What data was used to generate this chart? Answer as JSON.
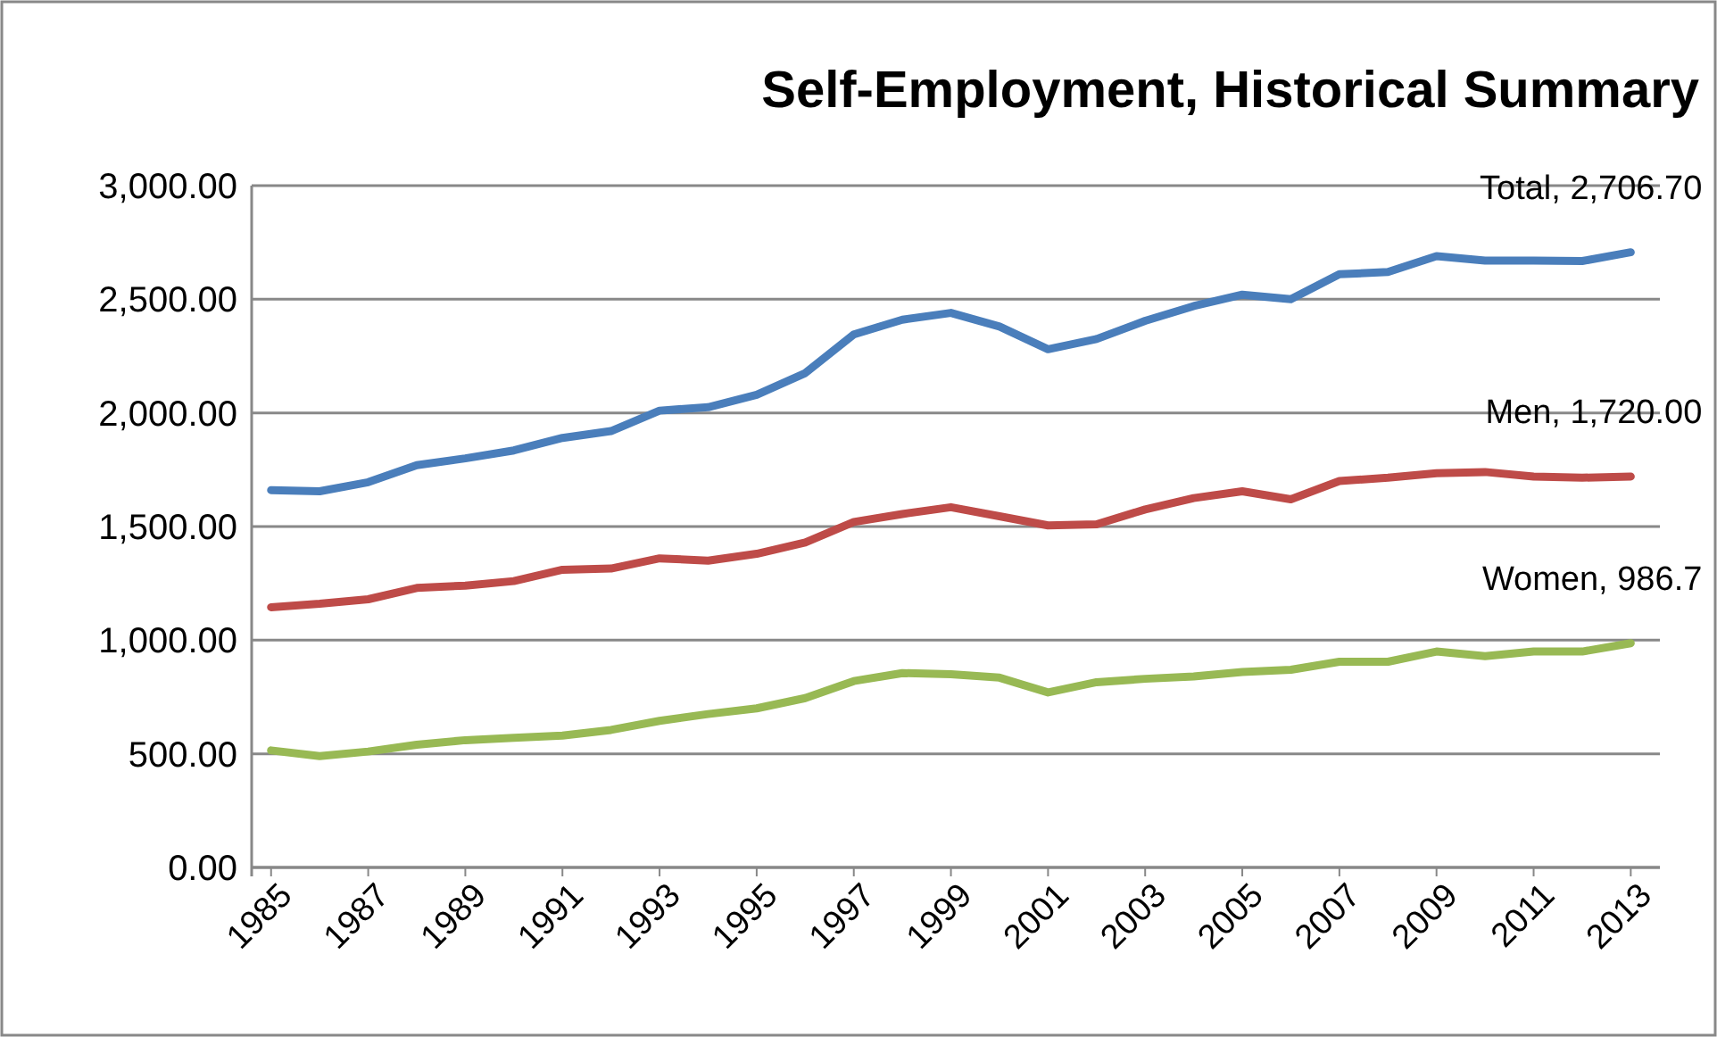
{
  "chart_data": {
    "type": "line",
    "title": "Self-Employment, Historical Summary",
    "x": [
      1985,
      1986,
      1987,
      1988,
      1989,
      1990,
      1991,
      1992,
      1993,
      1994,
      1995,
      1996,
      1997,
      1998,
      1999,
      2000,
      2001,
      2002,
      2003,
      2004,
      2005,
      2006,
      2007,
      2008,
      2009,
      2010,
      2011,
      2012,
      2013
    ],
    "series": [
      {
        "name": "Total,",
        "color": "#4a7ebb",
        "values": [
          1660,
          1655,
          1695,
          1770,
          1800,
          1835,
          1890,
          1920,
          2010,
          2025,
          2080,
          2175,
          2345,
          2410,
          2440,
          2380,
          2280,
          2325,
          2405,
          2470,
          2520,
          2500,
          2610,
          2620,
          2690,
          2670,
          2670,
          2668,
          2706.7
        ],
        "value_labels": [
          null,
          null,
          null,
          null,
          null,
          null,
          null,
          null,
          null,
          null,
          null,
          null,
          null,
          null,
          null,
          null,
          null,
          null,
          null,
          null,
          null,
          null,
          null,
          null,
          null,
          null,
          null,
          null,
          "2,706.70"
        ]
      },
      {
        "name": "Men,",
        "color": "#be4b48",
        "values": [
          1145,
          1160,
          1180,
          1230,
          1240,
          1260,
          1310,
          1315,
          1360,
          1350,
          1380,
          1430,
          1520,
          1555,
          1585,
          1545,
          1505,
          1510,
          1575,
          1625,
          1655,
          1620,
          1700,
          1715,
          1735,
          1740,
          1720,
          1715,
          1720
        ],
        "value_labels": [
          null,
          null,
          null,
          null,
          null,
          null,
          null,
          null,
          null,
          null,
          null,
          null,
          null,
          null,
          null,
          null,
          null,
          null,
          null,
          null,
          null,
          null,
          null,
          null,
          null,
          null,
          null,
          null,
          "1,720.00"
        ]
      },
      {
        "name": "Women,",
        "color": "#98b954",
        "values": [
          515,
          490,
          510,
          540,
          560,
          570,
          580,
          605,
          645,
          675,
          700,
          745,
          820,
          855,
          850,
          835,
          770,
          815,
          830,
          840,
          860,
          870,
          905,
          905,
          950,
          930,
          950,
          950,
          986.7
        ],
        "value_labels": [
          null,
          null,
          null,
          null,
          null,
          null,
          null,
          null,
          null,
          null,
          null,
          null,
          null,
          null,
          null,
          null,
          null,
          null,
          null,
          null,
          null,
          null,
          null,
          null,
          null,
          null,
          null,
          null,
          "986.7"
        ]
      }
    ],
    "xlim": [
      1984.6,
      2013.6
    ],
    "xticks": [
      1985,
      1987,
      1989,
      1991,
      1993,
      1995,
      1997,
      1999,
      2001,
      2003,
      2005,
      2007,
      2009,
      2011,
      2013
    ],
    "ylim": [
      0,
      3000
    ],
    "yticks": [
      {
        "value": 0,
        "label": "0.00"
      },
      {
        "value": 500,
        "label": "500.00"
      },
      {
        "value": 1000,
        "label": "1,000.00"
      },
      {
        "value": 1500,
        "label": "1,500.00"
      },
      {
        "value": 2000,
        "label": "2,000.00"
      },
      {
        "value": 2500,
        "label": "2,500.00"
      },
      {
        "value": 3000,
        "label": "3,000.00"
      }
    ],
    "grid": "y",
    "marker": "none",
    "line_style": "solid"
  }
}
